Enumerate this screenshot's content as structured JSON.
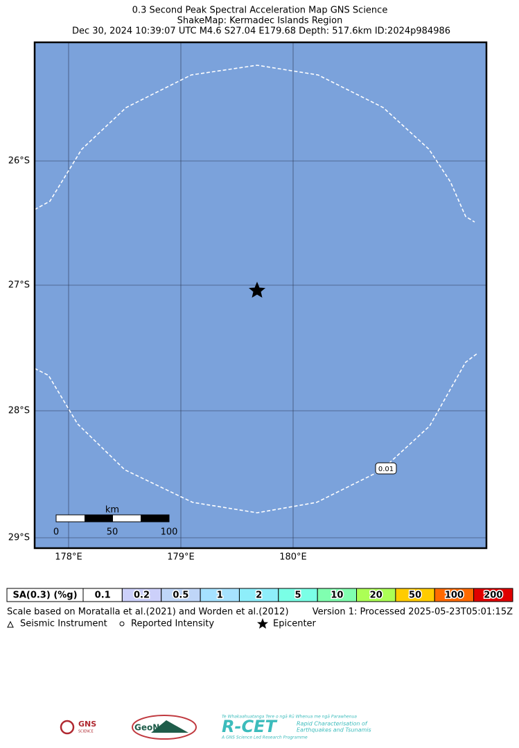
{
  "header": {
    "title_lines": [
      "0.3 Second Peak Spectral Acceleration Map GNS Science",
      "ShakeMap: Kermadec Islands Region",
      "Dec 30, 2024 10:39:07 UTC M4.6 S27.04 E179.68 Depth: 517.6km ID:2024p984986"
    ]
  },
  "map": {
    "latitude_labels": [
      "26°S",
      "27°S",
      "28°S",
      "29°S"
    ],
    "longitude_labels": [
      "178°E",
      "179°E",
      "180°E"
    ],
    "contour_label": "0.01",
    "scale_bar": {
      "unit": "km",
      "labels": [
        "0",
        "50",
        "100"
      ]
    }
  },
  "legend": {
    "colorbar_label": "SA(0.3) (%g)",
    "cells": [
      {
        "label": "0.1",
        "color": "#ffffff"
      },
      {
        "label": "0.2",
        "color": "#ccd0fa"
      },
      {
        "label": "0.5",
        "color": "#bfd6f8"
      },
      {
        "label": "1",
        "color": "#a6e2ff"
      },
      {
        "label": "2",
        "color": "#8eeefa"
      },
      {
        "label": "5",
        "color": "#7affe6"
      },
      {
        "label": "10",
        "color": "#80ffb0"
      },
      {
        "label": "20",
        "color": "#acff55"
      },
      {
        "label": "50",
        "color": "#ffcc00"
      },
      {
        "label": "100",
        "color": "#ff6a00"
      },
      {
        "label": "200",
        "color": "#e00000"
      }
    ],
    "scale_note": "Scale based on Moratalla et al.(2021) and Worden et al.(2012)",
    "version": "Version 1: Processed 2025-05-23T05:01:15Z",
    "symbols": [
      "Seismic Instrument",
      "Reported Intensity",
      "Epicenter"
    ]
  },
  "logos": {
    "gns": "GNS",
    "gns_sub": "SCIENCE",
    "geonet": "GeoNet",
    "rcet": "R-CET",
    "rcet_top": "Te Whakaahuatanga Tere o ngā Rū Whenua me ngā Parawhenua",
    "rcet_line1": "Rapid Characterisation of",
    "rcet_line2": "Earthquakes and Tsunamis",
    "rcet_bottom": "A GNS Science Led Research Programme"
  }
}
